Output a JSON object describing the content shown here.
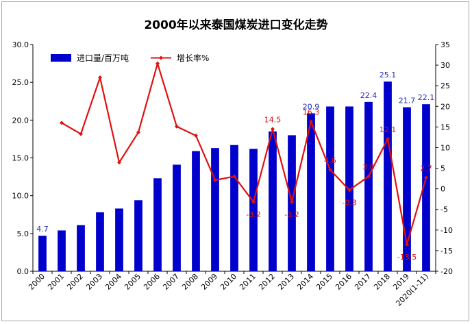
{
  "chart_data": {
    "type": "bar+line",
    "title": "2000年以来泰国煤炭进口变化走势",
    "categories": [
      "2000",
      "2001",
      "2002",
      "2003",
      "2004",
      "2005",
      "2006",
      "2007",
      "2008",
      "2009",
      "2010",
      "2011",
      "2012",
      "2013",
      "2014",
      "2015",
      "2016",
      "2017",
      "2018",
      "2019",
      "2020(1-11)"
    ],
    "series": [
      {
        "name": "进口量/百万吨",
        "type": "bar",
        "axis": "left",
        "color": "#0000cc",
        "values": [
          4.7,
          5.4,
          6.1,
          7.8,
          8.3,
          9.4,
          12.3,
          14.1,
          15.9,
          16.3,
          16.7,
          16.2,
          18.5,
          18.0,
          20.9,
          21.8,
          21.8,
          22.4,
          25.1,
          21.7,
          22.1
        ]
      },
      {
        "name": "增长率%",
        "type": "line",
        "axis": "right",
        "color": "#e01010",
        "values": [
          null,
          16.0,
          13.3,
          27.0,
          6.4,
          13.7,
          30.4,
          15.1,
          12.9,
          2.1,
          3.0,
          -3.2,
          14.5,
          -3.2,
          16.3,
          4.6,
          -0.3,
          3.0,
          12.1,
          -13.5,
          2.7
        ]
      }
    ],
    "bar_labels": [
      {
        "index": 0,
        "text": "4.7"
      },
      {
        "index": 14,
        "text": "20.9"
      },
      {
        "index": 17,
        "text": "22.4"
      },
      {
        "index": 18,
        "text": "25.1"
      },
      {
        "index": 19,
        "text": "21.7"
      },
      {
        "index": 20,
        "text": "22.1"
      }
    ],
    "line_labels": [
      {
        "index": 11,
        "text": "-3.2"
      },
      {
        "index": 12,
        "text": "14.5"
      },
      {
        "index": 13,
        "text": "-3.2"
      },
      {
        "index": 14,
        "text": "16.3"
      },
      {
        "index": 15,
        "text": "4.6"
      },
      {
        "index": 16,
        "text": "-0.3"
      },
      {
        "index": 17,
        "text": "3.0"
      },
      {
        "index": 18,
        "text": "12.1"
      },
      {
        "index": 19,
        "text": "-13.5"
      },
      {
        "index": 20,
        "text": "2.7"
      }
    ],
    "y_left": {
      "min": 0,
      "max": 30,
      "step": 5,
      "tick_labels": [
        "0.0",
        "5.0",
        "10.0",
        "15.0",
        "20.0",
        "25.0",
        "30.0"
      ]
    },
    "y_right": {
      "min": -20,
      "max": 35,
      "step": 5,
      "tick_labels": [
        "-20",
        "-15",
        "-10",
        "-5",
        "0",
        "5",
        "10",
        "15",
        "20",
        "25",
        "30",
        "35"
      ]
    },
    "grid": false,
    "legend_position": "top-left"
  }
}
